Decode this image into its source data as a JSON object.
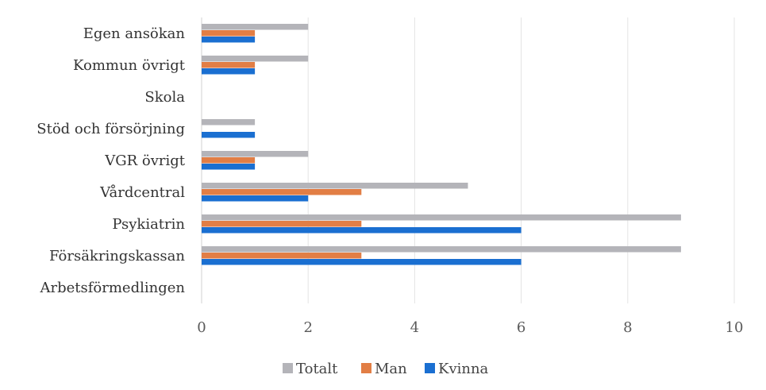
{
  "chart_data": {
    "type": "bar",
    "orientation": "horizontal",
    "categories": [
      "Egen ansökan",
      "Kommun övrigt",
      "Skola",
      "Stöd och försörjning",
      "VGR övrigt",
      "Vårdcentral",
      "Psykiatrin",
      "Försäkringskassan",
      "Arbetsförmedlingen"
    ],
    "series": [
      {
        "name": "Totalt",
        "color": "#b4b4b9",
        "values": [
          2,
          2,
          0,
          1,
          2,
          5,
          9,
          9,
          0
        ]
      },
      {
        "name": "Man",
        "color": "#e27e45",
        "values": [
          1,
          1,
          0,
          0,
          1,
          3,
          3,
          3,
          0
        ]
      },
      {
        "name": "Kvinna",
        "color": "#1a6fd1",
        "values": [
          1,
          1,
          0,
          1,
          1,
          2,
          6,
          6,
          0
        ]
      }
    ],
    "xlim": [
      0,
      10
    ],
    "xticks": [
      "0",
      "2",
      "4",
      "6",
      "8",
      "10"
    ],
    "grid": "vertical",
    "legend": "bottom"
  }
}
